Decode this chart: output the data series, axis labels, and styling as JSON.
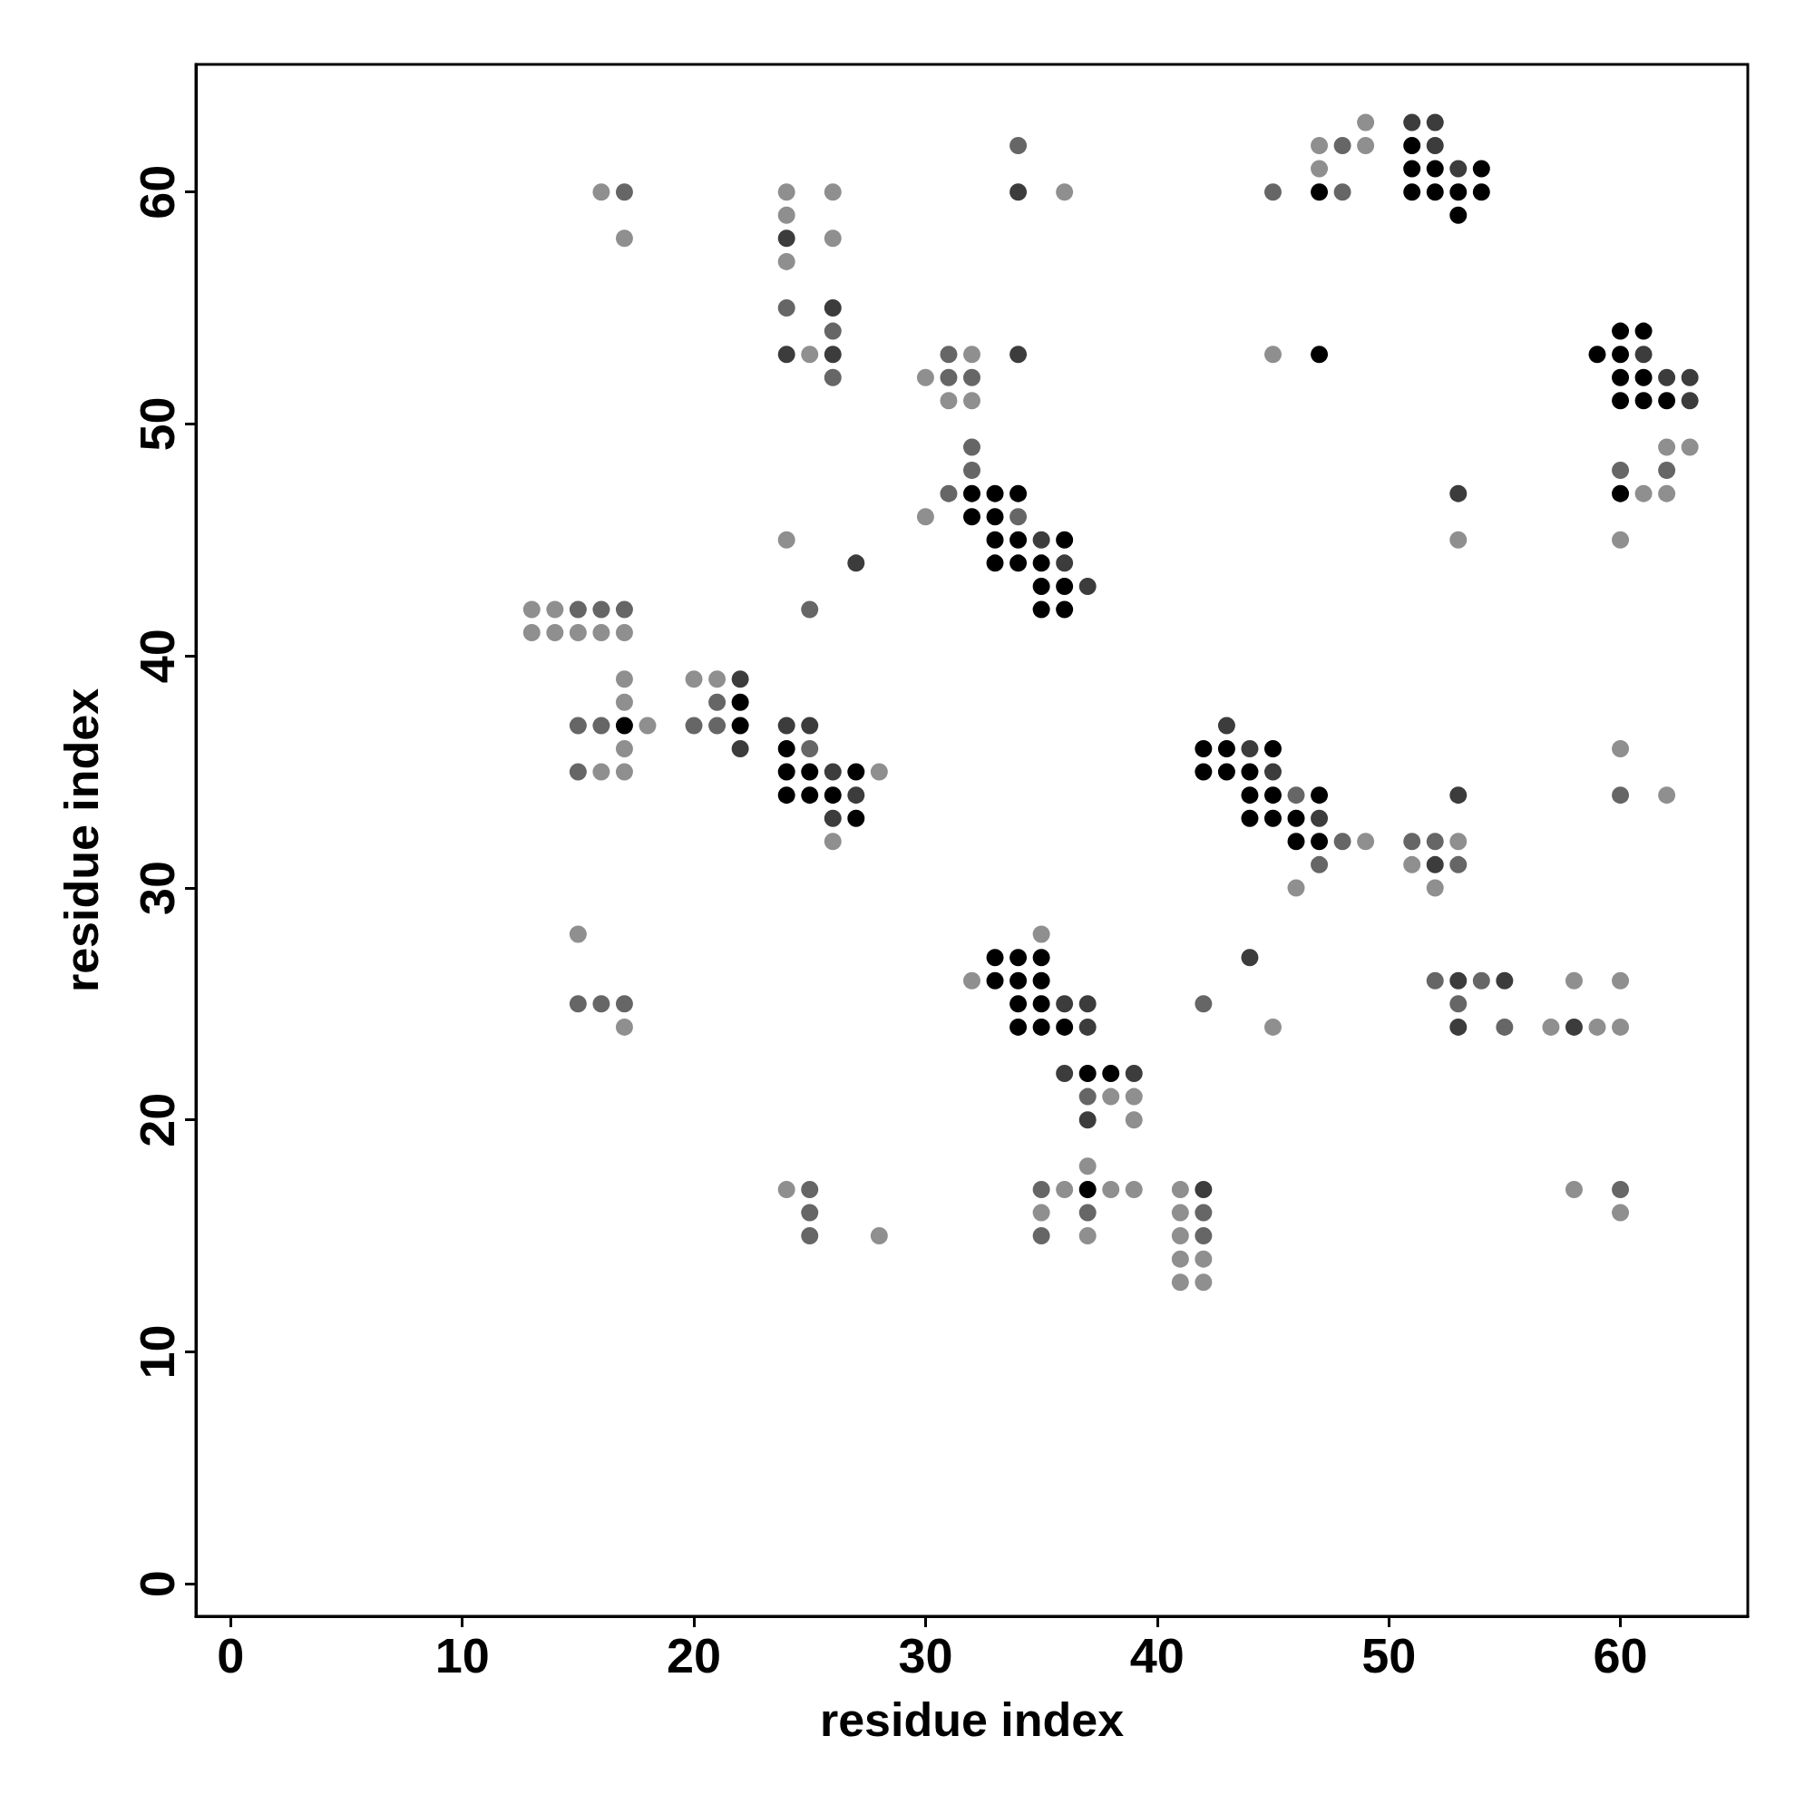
{
  "chart_data": {
    "type": "scatter",
    "xlabel": "residue index",
    "ylabel": "residue index",
    "xlim": [
      -1.5,
      65.5
    ],
    "ylim": [
      -1.4,
      65.5
    ],
    "xticks": [
      0,
      10,
      20,
      30,
      40,
      50,
      60
    ],
    "yticks": [
      0,
      10,
      20,
      30,
      40,
      50,
      60
    ],
    "marker": "circle",
    "series": [
      {
        "color": "#8f8f8f",
        "x": [
          49,
          47,
          49,
          47,
          16,
          24,
          26,
          36,
          24,
          17,
          26,
          24,
          25,
          32,
          45,
          30,
          31,
          32,
          62,
          63,
          61,
          62,
          30,
          24,
          53,
          60,
          13,
          14,
          13,
          14,
          15,
          16,
          17,
          17,
          20,
          21,
          17,
          18,
          17,
          60,
          16,
          17,
          28,
          62,
          26,
          49,
          53,
          51,
          46,
          52,
          15,
          35,
          32,
          58,
          60,
          17,
          45,
          57,
          59,
          60,
          38,
          39,
          39,
          37,
          24,
          36,
          38,
          39,
          41,
          58,
          35,
          41,
          60,
          28,
          37,
          41,
          41,
          42,
          41,
          42
        ],
        "values": [
          63,
          62,
          62,
          61,
          60,
          60,
          60,
          60,
          59,
          58,
          58,
          57,
          53,
          53,
          53,
          52,
          51,
          51,
          49,
          49,
          47,
          47,
          46,
          45,
          45,
          45,
          42,
          42,
          41,
          41,
          41,
          41,
          41,
          39,
          39,
          39,
          38,
          37,
          36,
          36,
          35,
          35,
          35,
          34,
          32,
          32,
          32,
          31,
          30,
          30,
          28,
          28,
          26,
          26,
          26,
          24,
          24,
          24,
          24,
          24,
          21,
          21,
          20,
          18,
          17,
          17,
          17,
          17,
          17,
          17,
          16,
          16,
          16,
          15,
          15,
          15,
          14,
          14,
          13,
          13
        ]
      },
      {
        "color": "#666666",
        "x": [
          34,
          48,
          17,
          45,
          48,
          24,
          26,
          31,
          26,
          31,
          32,
          32,
          32,
          60,
          62,
          31,
          34,
          15,
          16,
          17,
          25,
          21,
          15,
          16,
          20,
          21,
          25,
          15,
          46,
          60,
          48,
          51,
          52,
          47,
          53,
          52,
          54,
          15,
          16,
          17,
          42,
          53,
          55,
          37,
          25,
          35,
          60,
          25,
          37,
          42,
          25,
          35,
          42
        ],
        "values": [
          62,
          62,
          60,
          60,
          60,
          55,
          54,
          53,
          52,
          52,
          52,
          49,
          48,
          48,
          48,
          47,
          46,
          42,
          42,
          42,
          42,
          38,
          37,
          37,
          37,
          37,
          36,
          35,
          34,
          34,
          32,
          32,
          32,
          31,
          31,
          26,
          26,
          25,
          25,
          25,
          25,
          25,
          24,
          21,
          17,
          17,
          17,
          16,
          16,
          16,
          15,
          15,
          15
        ]
      },
      {
        "color": "#3c3c3c",
        "x": [
          51,
          52,
          52,
          53,
          34,
          24,
          26,
          24,
          26,
          34,
          61,
          62,
          63,
          63,
          53,
          35,
          27,
          36,
          37,
          22,
          24,
          25,
          43,
          22,
          44,
          26,
          45,
          27,
          53,
          26,
          47,
          52,
          44,
          53,
          55,
          36,
          37,
          37,
          53,
          58,
          36,
          39,
          37,
          42
        ],
        "values": [
          63,
          63,
          62,
          61,
          60,
          58,
          55,
          53,
          53,
          53,
          53,
          52,
          52,
          51,
          47,
          45,
          44,
          44,
          43,
          39,
          37,
          37,
          37,
          36,
          36,
          35,
          35,
          34,
          34,
          33,
          33,
          31,
          27,
          26,
          26,
          25,
          25,
          24,
          24,
          24,
          22,
          22,
          20,
          17
        ]
      },
      {
        "color": "#000000",
        "x": [
          51,
          51,
          52,
          54,
          47,
          51,
          52,
          53,
          54,
          53,
          60,
          61,
          47,
          59,
          60,
          60,
          61,
          60,
          61,
          62,
          32,
          33,
          34,
          60,
          32,
          33,
          33,
          34,
          36,
          33,
          34,
          35,
          35,
          36,
          35,
          36,
          22,
          17,
          22,
          24,
          42,
          43,
          45,
          24,
          25,
          27,
          42,
          43,
          44,
          24,
          25,
          26,
          44,
          45,
          47,
          27,
          44,
          45,
          46,
          46,
          47,
          33,
          34,
          35,
          33,
          34,
          35,
          34,
          35,
          34,
          35,
          36,
          37,
          38,
          37
        ],
        "values": [
          62,
          61,
          61,
          61,
          60,
          60,
          60,
          60,
          60,
          59,
          54,
          54,
          53,
          53,
          53,
          52,
          52,
          51,
          51,
          51,
          47,
          47,
          47,
          47,
          46,
          46,
          45,
          45,
          45,
          44,
          44,
          44,
          43,
          43,
          42,
          42,
          38,
          37,
          37,
          36,
          36,
          36,
          36,
          35,
          35,
          35,
          35,
          35,
          35,
          34,
          34,
          34,
          34,
          34,
          34,
          33,
          33,
          33,
          33,
          32,
          32,
          27,
          27,
          27,
          26,
          26,
          26,
          25,
          25,
          24,
          24,
          24,
          22,
          22,
          17
        ]
      }
    ]
  }
}
